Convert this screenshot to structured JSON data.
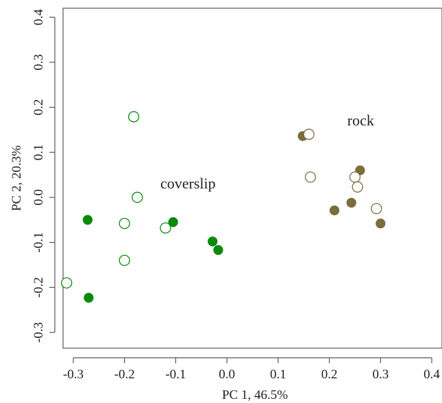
{
  "chart_data": {
    "type": "scatter",
    "xlabel": "PC 1, 46.5%",
    "ylabel": "PC 2, 20.3%",
    "xlim": [
      -0.32,
      0.42
    ],
    "ylim": [
      -0.335,
      0.42
    ],
    "x_ticks": [
      -0.3,
      -0.2,
      -0.1,
      0.0,
      0.1,
      0.2,
      0.3,
      0.4
    ],
    "y_ticks": [
      -0.3,
      -0.2,
      -0.1,
      0.0,
      0.1,
      0.2,
      0.3,
      0.4
    ],
    "x_tick_labels": [
      "-0.3",
      "-0.2",
      "-0.1",
      "0.0",
      "0.1",
      "0.2",
      "0.3",
      "0.4"
    ],
    "y_tick_labels": [
      "-0.3",
      "-0.2",
      "-0.1",
      "0.0",
      "0.1",
      "0.2",
      "0.3",
      "0.4"
    ],
    "grid": false,
    "colors": {
      "coverslip": "#0a8a0a",
      "rock": "#7a6e3c"
    },
    "annotations": [
      {
        "text": "coverslip",
        "x": -0.13,
        "y": 0.02
      },
      {
        "text": "rock",
        "x": 0.235,
        "y": 0.16
      }
    ],
    "series": [
      {
        "group": "coverslip",
        "filled": true,
        "points": [
          {
            "x": -0.272,
            "y": -0.05
          },
          {
            "x": -0.27,
            "y": -0.223
          },
          {
            "x": -0.105,
            "y": -0.055
          },
          {
            "x": -0.028,
            "y": -0.098
          },
          {
            "x": -0.017,
            "y": -0.117
          }
        ]
      },
      {
        "group": "coverslip",
        "filled": false,
        "points": [
          {
            "x": -0.313,
            "y": -0.19
          },
          {
            "x": -0.2,
            "y": -0.058
          },
          {
            "x": -0.2,
            "y": -0.14
          },
          {
            "x": -0.182,
            "y": 0.179
          },
          {
            "x": -0.175,
            "y": 0.0
          },
          {
            "x": -0.12,
            "y": -0.068
          }
        ]
      },
      {
        "group": "rock",
        "filled": true,
        "points": [
          {
            "x": 0.148,
            "y": 0.136
          },
          {
            "x": 0.21,
            "y": -0.029
          },
          {
            "x": 0.243,
            "y": -0.012
          },
          {
            "x": 0.26,
            "y": 0.06
          },
          {
            "x": 0.3,
            "y": -0.058
          }
        ]
      },
      {
        "group": "rock",
        "filled": false,
        "points": [
          {
            "x": 0.16,
            "y": 0.14
          },
          {
            "x": 0.163,
            "y": 0.045
          },
          {
            "x": 0.25,
            "y": 0.045
          },
          {
            "x": 0.255,
            "y": 0.023
          },
          {
            "x": 0.292,
            "y": -0.025
          }
        ]
      }
    ]
  }
}
